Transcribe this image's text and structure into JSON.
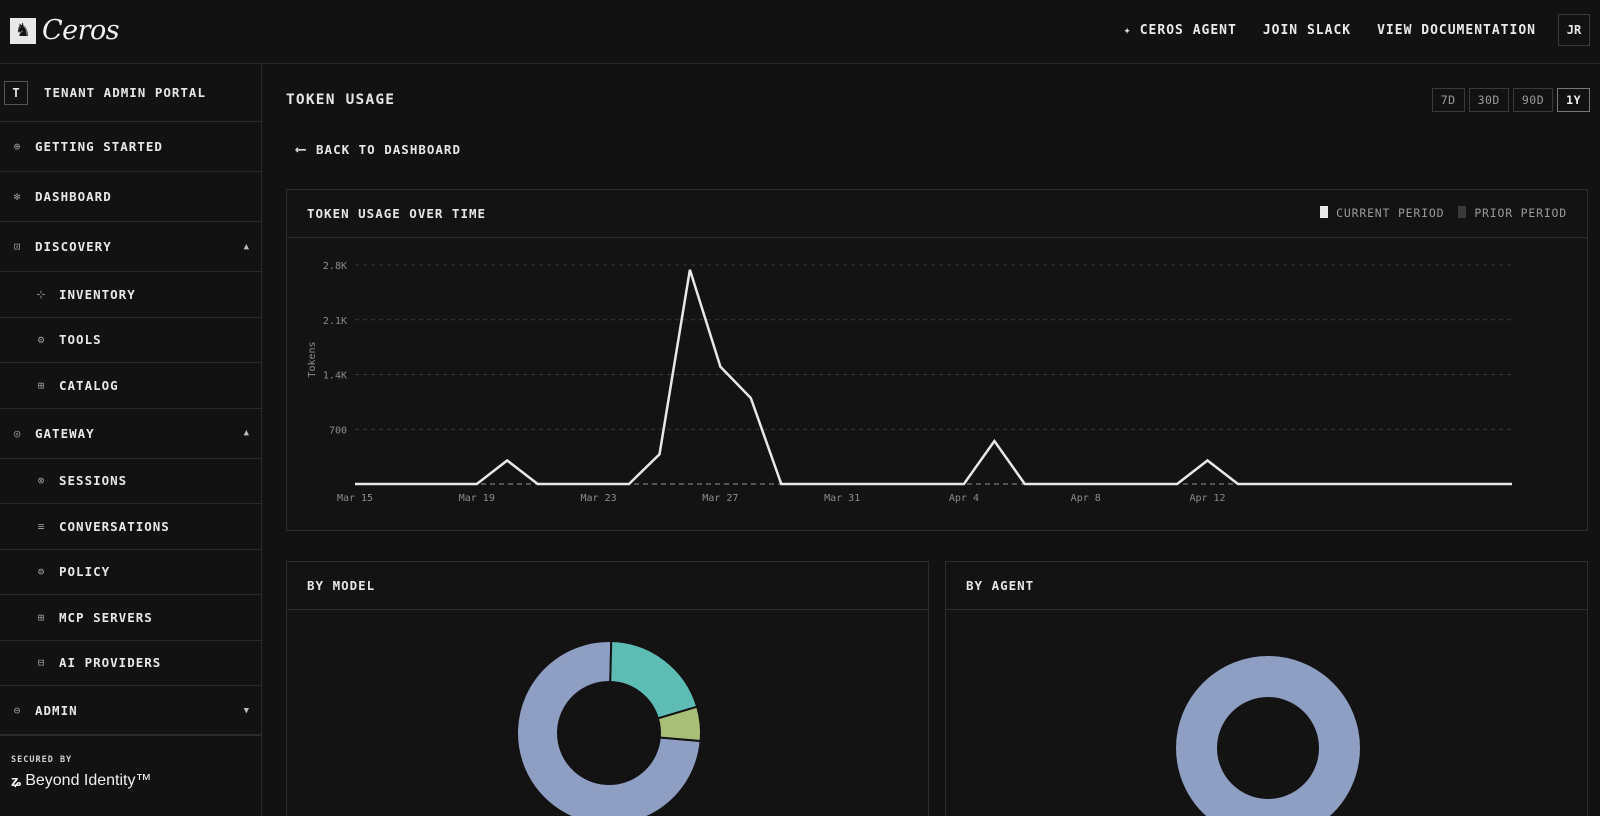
{
  "brand": {
    "name": "Ceros",
    "mark": "🐎"
  },
  "topnav": {
    "agent": "CEROS AGENT",
    "slack": "JOIN SLACK",
    "docs": "VIEW DOCUMENTATION",
    "avatar": "JR"
  },
  "sidebar": {
    "tenant_badge": "T",
    "tenant_label": "TENANT ADMIN PORTAL",
    "items": {
      "getting_started": "GETTING STARTED",
      "dashboard": "DASHBOARD",
      "discovery": "DISCOVERY",
      "inventory": "INVENTORY",
      "tools": "TOOLS",
      "catalog": "CATALOG",
      "gateway": "GATEWAY",
      "sessions": "SESSIONS",
      "conversations": "CONVERSATIONS",
      "policy": "POLICY",
      "mcp_servers": "MCP SERVERS",
      "ai_providers": "AI PROVIDERS",
      "admin": "ADMIN"
    },
    "secured_by": "SECURED BY",
    "secured_brand": "Beyond Identity™"
  },
  "main": {
    "title": "TOKEN USAGE",
    "ranges": [
      "7D",
      "30D",
      "90D",
      "1Y"
    ],
    "active_range": "1Y",
    "back_label": "BACK TO DASHBOARD",
    "chart_title": "TOKEN USAGE OVER TIME",
    "legend_current": "CURRENT PERIOD",
    "legend_prior": "PRIOR PERIOD",
    "by_model_title": "BY MODEL",
    "by_agent_title": "BY AGENT"
  },
  "colors": {
    "line": "#e8e8e8",
    "donut_primary": "#8e9fc3",
    "donut_teal": "#5dbcb4",
    "donut_green": "#a8bf78"
  },
  "chart_data": [
    {
      "type": "line",
      "title": "TOKEN USAGE OVER TIME",
      "ylabel": "Tokens",
      "ylim": [
        0,
        2800
      ],
      "yticks": [
        "2.8K",
        "2.1K",
        "1.4K",
        "700"
      ],
      "yticks_values": [
        2800,
        2100,
        1400,
        700
      ],
      "xticks": [
        "Mar 15",
        "Mar 19",
        "Mar 23",
        "Mar 27",
        "Mar 31",
        "Apr 4",
        "Apr 8",
        "Apr 12"
      ],
      "xticks_index": [
        0,
        4,
        8,
        12,
        16,
        20,
        24,
        28
      ],
      "series": [
        {
          "name": "CURRENT PERIOD",
          "values": [
            0,
            0,
            0,
            0,
            0,
            300,
            0,
            0,
            0,
            0,
            380,
            2740,
            1500,
            1100,
            0,
            0,
            0,
            0,
            0,
            0,
            0,
            550,
            0,
            0,
            0,
            0,
            0,
            0,
            300,
            0,
            0,
            0,
            0,
            0,
            0,
            0,
            0,
            0,
            0
          ],
          "style": "solid"
        },
        {
          "name": "PRIOR PERIOD",
          "values": [
            0,
            0,
            0,
            0,
            0,
            0,
            0,
            0,
            0,
            0,
            0,
            0,
            0,
            0,
            0,
            0,
            0,
            0,
            0,
            0,
            0,
            0,
            0,
            0,
            0,
            0,
            0,
            0,
            0,
            0,
            0,
            0,
            0,
            0,
            0,
            0,
            0,
            0,
            0
          ],
          "style": "dashed"
        }
      ]
    },
    {
      "type": "pie",
      "title": "BY MODEL",
      "slices": [
        {
          "value": 74,
          "color": "#8e9fc3"
        },
        {
          "value": 20,
          "color": "#5dbcb4"
        },
        {
          "value": 6,
          "color": "#a8bf78"
        }
      ]
    },
    {
      "type": "pie",
      "title": "BY AGENT",
      "slices": [
        {
          "value": 100,
          "color": "#8e9fc3"
        }
      ]
    }
  ]
}
